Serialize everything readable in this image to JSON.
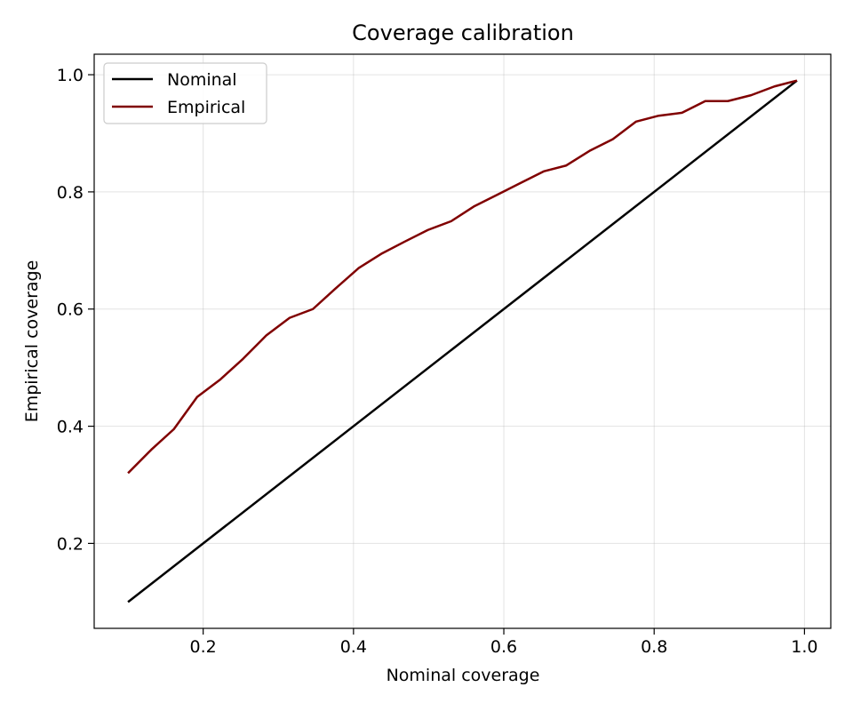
{
  "chart_data": {
    "type": "line",
    "title": "Coverage calibration",
    "xlabel": "Nominal coverage",
    "ylabel": "Empirical coverage",
    "xlim": [
      0.055,
      1.035
    ],
    "ylim": [
      0.055,
      1.035
    ],
    "xticks": [
      0.2,
      0.4,
      0.6,
      0.8,
      1.0
    ],
    "xtick_labels": [
      "0.2",
      "0.4",
      "0.6",
      "0.8",
      "1.0"
    ],
    "yticks": [
      0.2,
      0.4,
      0.6,
      0.8,
      1.0
    ],
    "ytick_labels": [
      "0.2",
      "0.4",
      "0.6",
      "0.8",
      "1.0"
    ],
    "grid": true,
    "legend": {
      "location": "upper-left"
    },
    "series": [
      {
        "name": "Nominal",
        "color": "#000000",
        "x": [
          0.1,
          0.99
        ],
        "y": [
          0.1,
          0.99
        ]
      },
      {
        "name": "Empirical",
        "color": "#800000",
        "x": [
          0.1,
          0.131,
          0.161,
          0.192,
          0.223,
          0.253,
          0.284,
          0.315,
          0.346,
          0.376,
          0.407,
          0.438,
          0.468,
          0.499,
          0.53,
          0.56,
          0.591,
          0.622,
          0.653,
          0.683,
          0.714,
          0.745,
          0.776,
          0.806,
          0.837,
          0.868,
          0.898,
          0.929,
          0.96,
          0.99
        ],
        "y": [
          0.32,
          0.36,
          0.395,
          0.45,
          0.48,
          0.515,
          0.555,
          0.585,
          0.6,
          0.635,
          0.67,
          0.695,
          0.715,
          0.735,
          0.75,
          0.775,
          0.795,
          0.815,
          0.835,
          0.845,
          0.87,
          0.89,
          0.92,
          0.93,
          0.935,
          0.955,
          0.955,
          0.965,
          0.98,
          0.99
        ]
      }
    ]
  }
}
